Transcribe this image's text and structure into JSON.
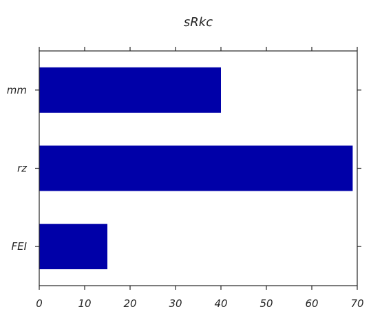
{
  "chart_data": {
    "type": "bar",
    "orientation": "horizontal",
    "title": "sRkc",
    "xlabel": "",
    "ylabel": "",
    "categories": [
      "FEI",
      "rz",
      "mm"
    ],
    "values": [
      15,
      69,
      40
    ],
    "xlim": [
      0,
      70
    ],
    "xticks": [
      0,
      10,
      20,
      30,
      40,
      50,
      60,
      70
    ],
    "grid": false,
    "bar_color": "#0000a8"
  }
}
